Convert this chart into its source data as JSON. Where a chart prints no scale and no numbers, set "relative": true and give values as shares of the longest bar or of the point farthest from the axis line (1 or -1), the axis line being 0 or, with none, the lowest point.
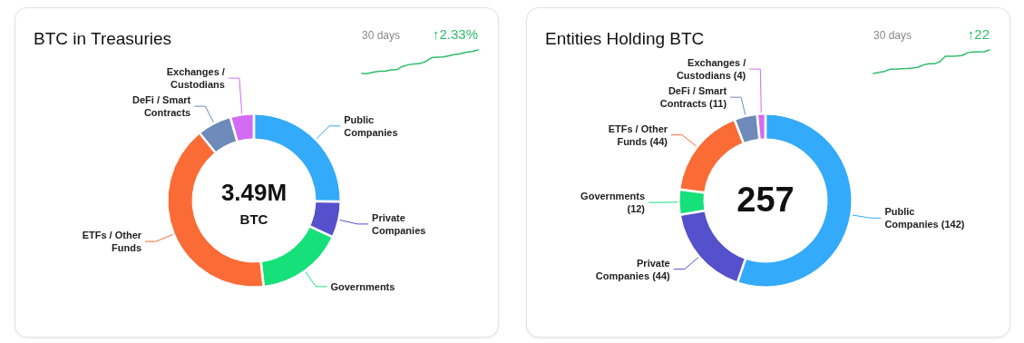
{
  "chart_data": [
    {
      "type": "donut",
      "title": "BTC in Treasuries",
      "categories": [
        "Public Companies",
        "Private Companies",
        "Governments",
        "ETFs / Other Funds",
        "DeFi / Smart Contracts",
        "Exchanges / Custodians"
      ],
      "values": [
        25.2,
        6.7,
        16.3,
        41,
        6.4,
        4.4
      ],
      "colors": [
        "#33aafa",
        "#5550cc",
        "#15e07a",
        "#fb6b36",
        "#6d8ab8",
        "#d36bf5"
      ],
      "annotations": [
        "3.49M",
        "BTC"
      ]
    },
    {
      "type": "line",
      "title": "30 days",
      "relative": true,
      "categories": [
        null,
        null,
        null,
        null,
        null,
        null,
        null,
        null,
        null,
        null,
        null,
        null,
        null,
        null,
        null,
        null,
        null,
        null,
        null,
        null,
        null
      ],
      "series": [
        {
          "color": "#2ebd6b",
          "values": [
            0,
            0,
            0.06,
            0.1,
            0.1,
            0.15,
            0.16,
            0.3,
            0.37,
            0.4,
            0.42,
            0.51,
            0.67,
            0.69,
            0.7,
            0.75,
            0.81,
            0.84,
            0.9,
            0.93,
            1
          ]
        }
      ],
      "annotations": [
        "↑2.33%"
      ]
    },
    {
      "type": "donut",
      "title": "Entities Holding BTC",
      "categories": [
        "Public Companies (142)",
        "Private Companies (44)",
        "Governments (12)",
        "ETFs / Other Funds (44)",
        "DeFi / Smart Contracts (11)",
        "Exchanges / Custodians (4)"
      ],
      "values": [
        142,
        44,
        12,
        44,
        11,
        4
      ],
      "colors": [
        "#33aafa",
        "#5550cc",
        "#15e07a",
        "#fb6b36",
        "#6d8ab8",
        "#d36bf5"
      ],
      "annotations": [
        "257"
      ]
    },
    {
      "type": "line",
      "title": "30 days",
      "relative": true,
      "categories": [
        null,
        null,
        null,
        null,
        null,
        null,
        null,
        null,
        null,
        null,
        null,
        null,
        null,
        null,
        null,
        null,
        null,
        null,
        null,
        null,
        null,
        null
      ],
      "series": [
        {
          "color": "#2ebd6b",
          "values": [
            0,
            0.05,
            0.09,
            0.18,
            0.18,
            0.2,
            0.21,
            0.23,
            0.26,
            0.36,
            0.41,
            0.41,
            0.5,
            0.73,
            0.73,
            0.74,
            0.76,
            0.88,
            0.91,
            0.91,
            0.92,
            1
          ]
        }
      ],
      "annotations": [
        "↑22"
      ]
    }
  ]
}
